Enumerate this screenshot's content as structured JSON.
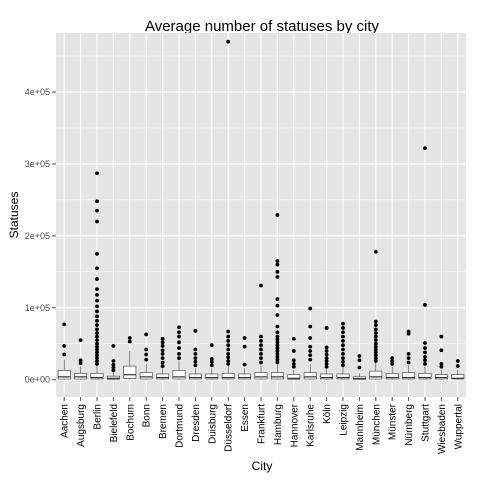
{
  "chart_data": {
    "type": "boxplot",
    "title": "Average number of statuses by city",
    "xlabel": "City",
    "ylabel": "Statuses",
    "ylim": [
      -24000,
      482000
    ],
    "yticks": [
      {
        "value": 0,
        "label": "0e+00"
      },
      {
        "value": 100000,
        "label": "1e+05"
      },
      {
        "value": 200000,
        "label": "2e+05"
      },
      {
        "value": 300000,
        "label": "3e+05"
      },
      {
        "value": 400000,
        "label": "4e+05"
      }
    ],
    "grid": true,
    "background": "#e5e5e5",
    "gridline_color": "#ffffff",
    "box_fill": "#ffffff",
    "outlier_color": "#000000",
    "categories": [
      "Aachen",
      "Augsburg",
      "Berlin",
      "Bielefeld",
      "Bochum",
      "Bonn",
      "Bremen",
      "Dortmund",
      "Dresden",
      "Duisburg",
      "Düsseldorf",
      "Essen",
      "Frankfurt",
      "Hamburg",
      "Hannover",
      "Karlsruhe",
      "Köln",
      "Leipzig",
      "Mannheim",
      "München",
      "Münster",
      "Nürnberg",
      "Stuttgart",
      "Wiesbaden",
      "Wuppertal"
    ],
    "boxes": [
      {
        "q1": 1000,
        "median": 4000,
        "q3": 13000,
        "low": 0,
        "high": 28000,
        "outliers": [
          35000,
          47000,
          77000
        ]
      },
      {
        "q1": 1000,
        "median": 4000,
        "q3": 9000,
        "low": 0,
        "high": 18000,
        "outliers": [
          23000,
          27000,
          55000
        ]
      },
      {
        "q1": 1000,
        "median": 3000,
        "q3": 9000,
        "low": 0,
        "high": 20000,
        "outliers": [
          22000,
          26000,
          30000,
          34000,
          38000,
          42000,
          46000,
          50000,
          55000,
          60000,
          65000,
          70000,
          76000,
          82000,
          88000,
          95000,
          102000,
          110000,
          118000,
          126000,
          140000,
          155000,
          175000,
          220000,
          235000,
          248000,
          287000
        ]
      },
      {
        "q1": 500,
        "median": 2000,
        "q3": 5000,
        "low": 0,
        "high": 10000,
        "outliers": [
          13000,
          17000,
          21000,
          26000,
          47000
        ]
      },
      {
        "q1": 2000,
        "median": 7000,
        "q3": 19000,
        "low": 0,
        "high": 40000,
        "outliers": [
          53000,
          58000
        ]
      },
      {
        "q1": 1000,
        "median": 4000,
        "q3": 10000,
        "low": 0,
        "high": 22000,
        "outliers": [
          28000,
          35000,
          42000,
          63000
        ]
      },
      {
        "q1": 1000,
        "median": 3000,
        "q3": 8000,
        "low": 0,
        "high": 16000,
        "outliers": [
          19000,
          24000,
          30000,
          36000,
          41000,
          47000,
          52000,
          57000
        ]
      },
      {
        "q1": 1000,
        "median": 4000,
        "q3": 13000,
        "low": 0,
        "high": 27000,
        "outliers": [
          30000,
          36000,
          44000,
          52000,
          60000,
          66000,
          73000
        ]
      },
      {
        "q1": 1000,
        "median": 3000,
        "q3": 8000,
        "low": 0,
        "high": 16000,
        "outliers": [
          20000,
          25000,
          30000,
          36000,
          42000,
          68000
        ]
      },
      {
        "q1": 1000,
        "median": 3000,
        "q3": 8000,
        "low": 0,
        "high": 16000,
        "outliers": [
          20000,
          25000,
          29000,
          48000
        ]
      },
      {
        "q1": 1000,
        "median": 3000,
        "q3": 9000,
        "low": 0,
        "high": 19000,
        "outliers": [
          22000,
          26000,
          31000,
          36000,
          42000,
          48000,
          54000,
          60000,
          67000,
          470000
        ]
      },
      {
        "q1": 1000,
        "median": 3000,
        "q3": 8000,
        "low": 0,
        "high": 16000,
        "outliers": [
          21000,
          46000,
          58000
        ]
      },
      {
        "q1": 1000,
        "median": 4000,
        "q3": 10000,
        "low": 0,
        "high": 20000,
        "outliers": [
          24000,
          30000,
          36000,
          42000,
          48000,
          54000,
          60000,
          131000
        ]
      },
      {
        "q1": 1000,
        "median": 4000,
        "q3": 10000,
        "low": 0,
        "high": 21000,
        "outliers": [
          24000,
          28000,
          32000,
          36000,
          40000,
          44000,
          48000,
          52000,
          56000,
          60000,
          66000,
          74000,
          90000,
          103000,
          112000,
          143000,
          150000,
          160000,
          165000,
          229000
        ]
      },
      {
        "q1": 500,
        "median": 2000,
        "q3": 7000,
        "low": 0,
        "high": 14000,
        "outliers": [
          18000,
          22000,
          27000,
          40000,
          57000
        ]
      },
      {
        "q1": 1000,
        "median": 4000,
        "q3": 10000,
        "low": 0,
        "high": 22000,
        "outliers": [
          28000,
          34000,
          40000,
          46000,
          58000,
          74000,
          99000
        ]
      },
      {
        "q1": 1000,
        "median": 3000,
        "q3": 8000,
        "low": 0,
        "high": 16000,
        "outliers": [
          18000,
          22000,
          26000,
          30000,
          35000,
          40000,
          45000,
          72000
        ]
      },
      {
        "q1": 1000,
        "median": 3000,
        "q3": 8000,
        "low": 0,
        "high": 17000,
        "outliers": [
          20000,
          25000,
          30000,
          36000,
          42000,
          48000,
          54000,
          60000,
          66000,
          72000,
          78000
        ]
      },
      {
        "q1": 500,
        "median": 1500,
        "q3": 4000,
        "low": 0,
        "high": 9000,
        "outliers": [
          17000,
          27000,
          33000
        ]
      },
      {
        "q1": 1000,
        "median": 4000,
        "q3": 12000,
        "low": 0,
        "high": 24000,
        "outliers": [
          26000,
          30000,
          34000,
          38000,
          42000,
          46000,
          50000,
          55000,
          60000,
          65000,
          70000,
          76000,
          81000,
          178000
        ]
      },
      {
        "q1": 1000,
        "median": 3000,
        "q3": 9000,
        "low": 0,
        "high": 18000,
        "outliers": [
          22000,
          26000,
          30000
        ]
      },
      {
        "q1": 1000,
        "median": 3000,
        "q3": 10000,
        "low": 0,
        "high": 20000,
        "outliers": [
          24000,
          30000,
          36000,
          64000,
          67000
        ]
      },
      {
        "q1": 1000,
        "median": 3000,
        "q3": 9000,
        "low": 0,
        "high": 18000,
        "outliers": [
          22000,
          27000,
          32000,
          38000,
          44000,
          51000,
          104000,
          322000
        ]
      },
      {
        "q1": 1000,
        "median": 3000,
        "q3": 7000,
        "low": 0,
        "high": 14000,
        "outliers": [
          18000,
          22000,
          41000,
          60000
        ]
      },
      {
        "q1": 1000,
        "median": 2000,
        "q3": 7000,
        "low": 0,
        "high": 14000,
        "outliers": [
          19000,
          26000
        ]
      }
    ]
  }
}
